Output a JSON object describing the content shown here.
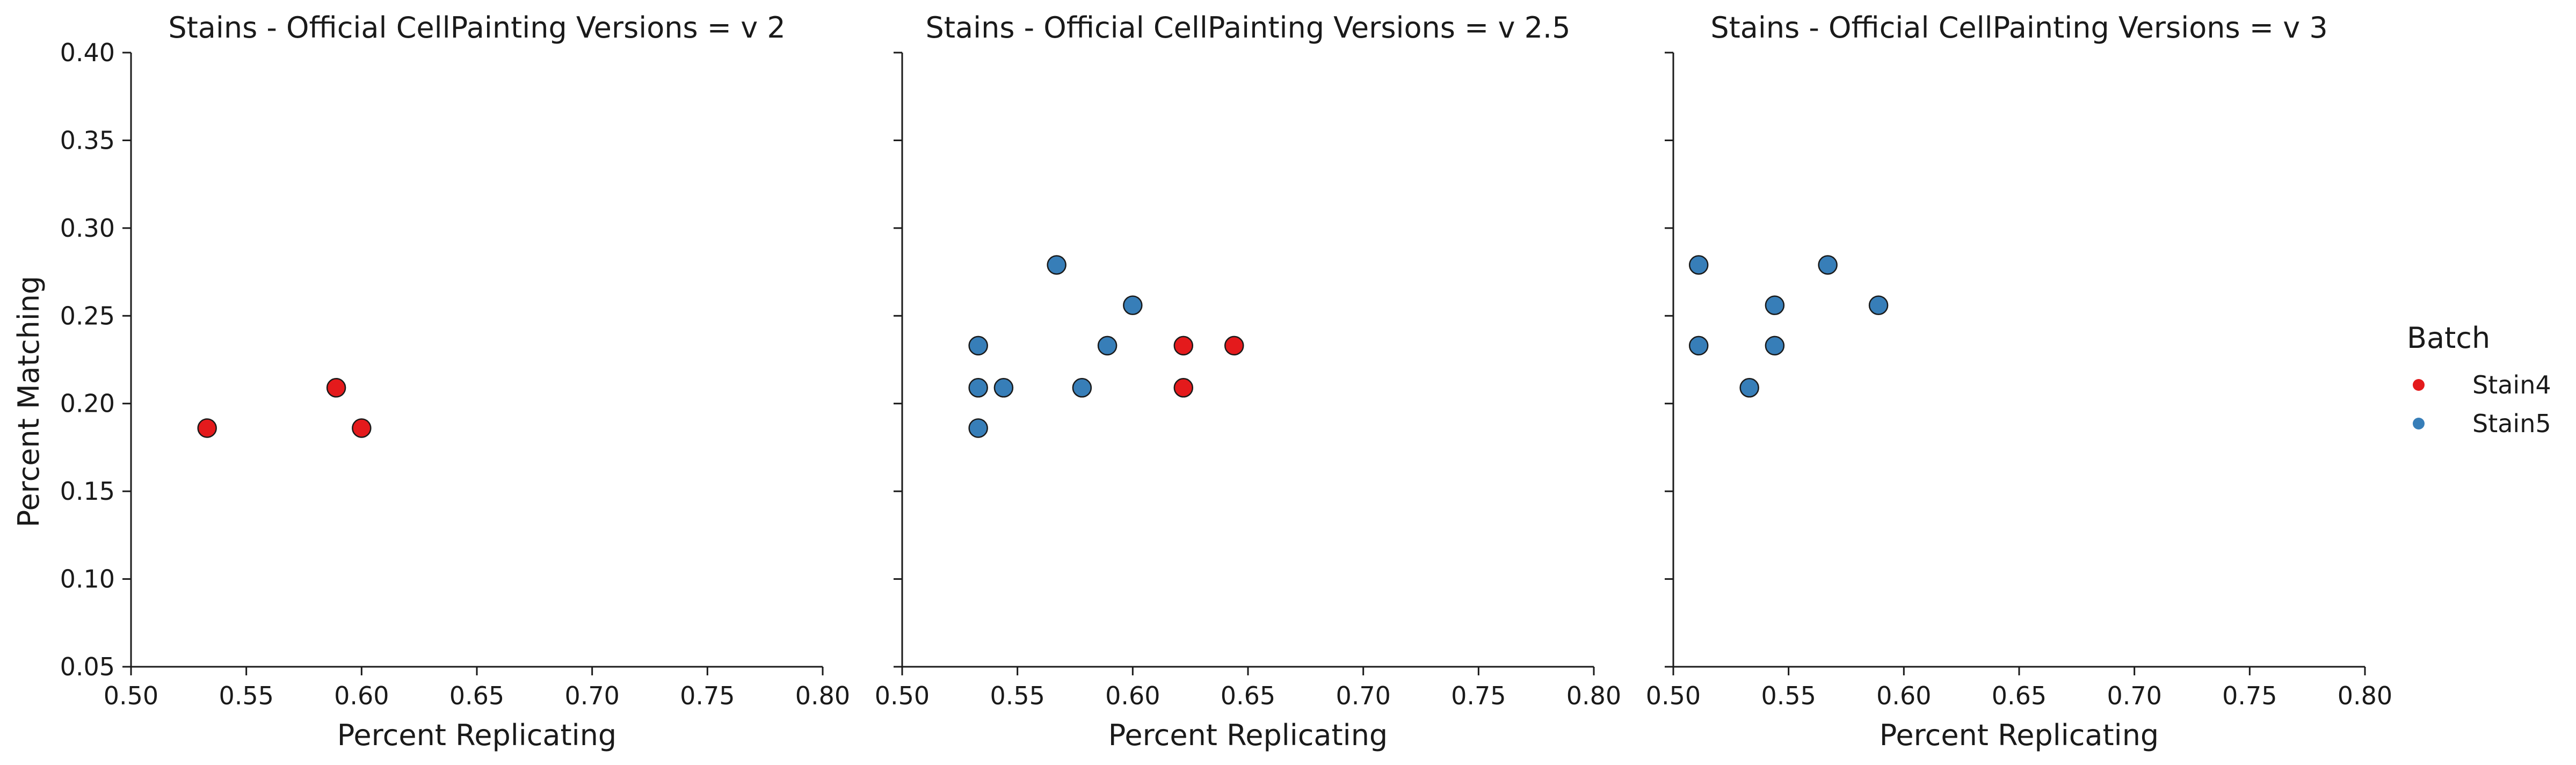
{
  "chart_data": {
    "type": "scatter",
    "ylabel": "Percent Matching",
    "xlabel": "Percent Replicating",
    "xlim": [
      0.5,
      0.8
    ],
    "ylim": [
      0.05,
      0.4
    ],
    "xticks": [
      "0.50",
      "0.55",
      "0.60",
      "0.65",
      "0.70",
      "0.75",
      "0.80"
    ],
    "yticks": [
      "0.05",
      "0.10",
      "0.15",
      "0.20",
      "0.25",
      "0.30",
      "0.35",
      "0.40"
    ],
    "grid": false,
    "shared_y": true,
    "legend": {
      "title": "Batch",
      "placement": "right",
      "entries": [
        {
          "name": "Stain4",
          "color": "#e41a1c"
        },
        {
          "name": "Stain5",
          "color": "#377eb8"
        }
      ]
    },
    "panels": [
      {
        "title": "Stains - Official CellPainting Versions = v 2",
        "series": [
          {
            "name": "Stain4",
            "points": [
              [
                0.533,
                0.186
              ],
              [
                0.589,
                0.209
              ],
              [
                0.6,
                0.186
              ]
            ]
          },
          {
            "name": "Stain5",
            "points": []
          }
        ]
      },
      {
        "title": "Stains - Official CellPainting Versions = v 2.5",
        "series": [
          {
            "name": "Stain4",
            "points": [
              [
                0.622,
                0.233
              ],
              [
                0.644,
                0.233
              ],
              [
                0.622,
                0.209
              ]
            ]
          },
          {
            "name": "Stain5",
            "points": [
              [
                0.567,
                0.279
              ],
              [
                0.6,
                0.256
              ],
              [
                0.533,
                0.233
              ],
              [
                0.589,
                0.233
              ],
              [
                0.533,
                0.209
              ],
              [
                0.544,
                0.209
              ],
              [
                0.578,
                0.209
              ],
              [
                0.533,
                0.186
              ]
            ]
          }
        ]
      },
      {
        "title": "Stains - Official CellPainting Versions = v 3",
        "series": [
          {
            "name": "Stain4",
            "points": []
          },
          {
            "name": "Stain5",
            "points": [
              [
                0.511,
                0.279
              ],
              [
                0.567,
                0.279
              ],
              [
                0.544,
                0.256
              ],
              [
                0.589,
                0.256
              ],
              [
                0.511,
                0.233
              ],
              [
                0.544,
                0.233
              ],
              [
                0.533,
                0.209
              ]
            ]
          }
        ]
      }
    ]
  }
}
